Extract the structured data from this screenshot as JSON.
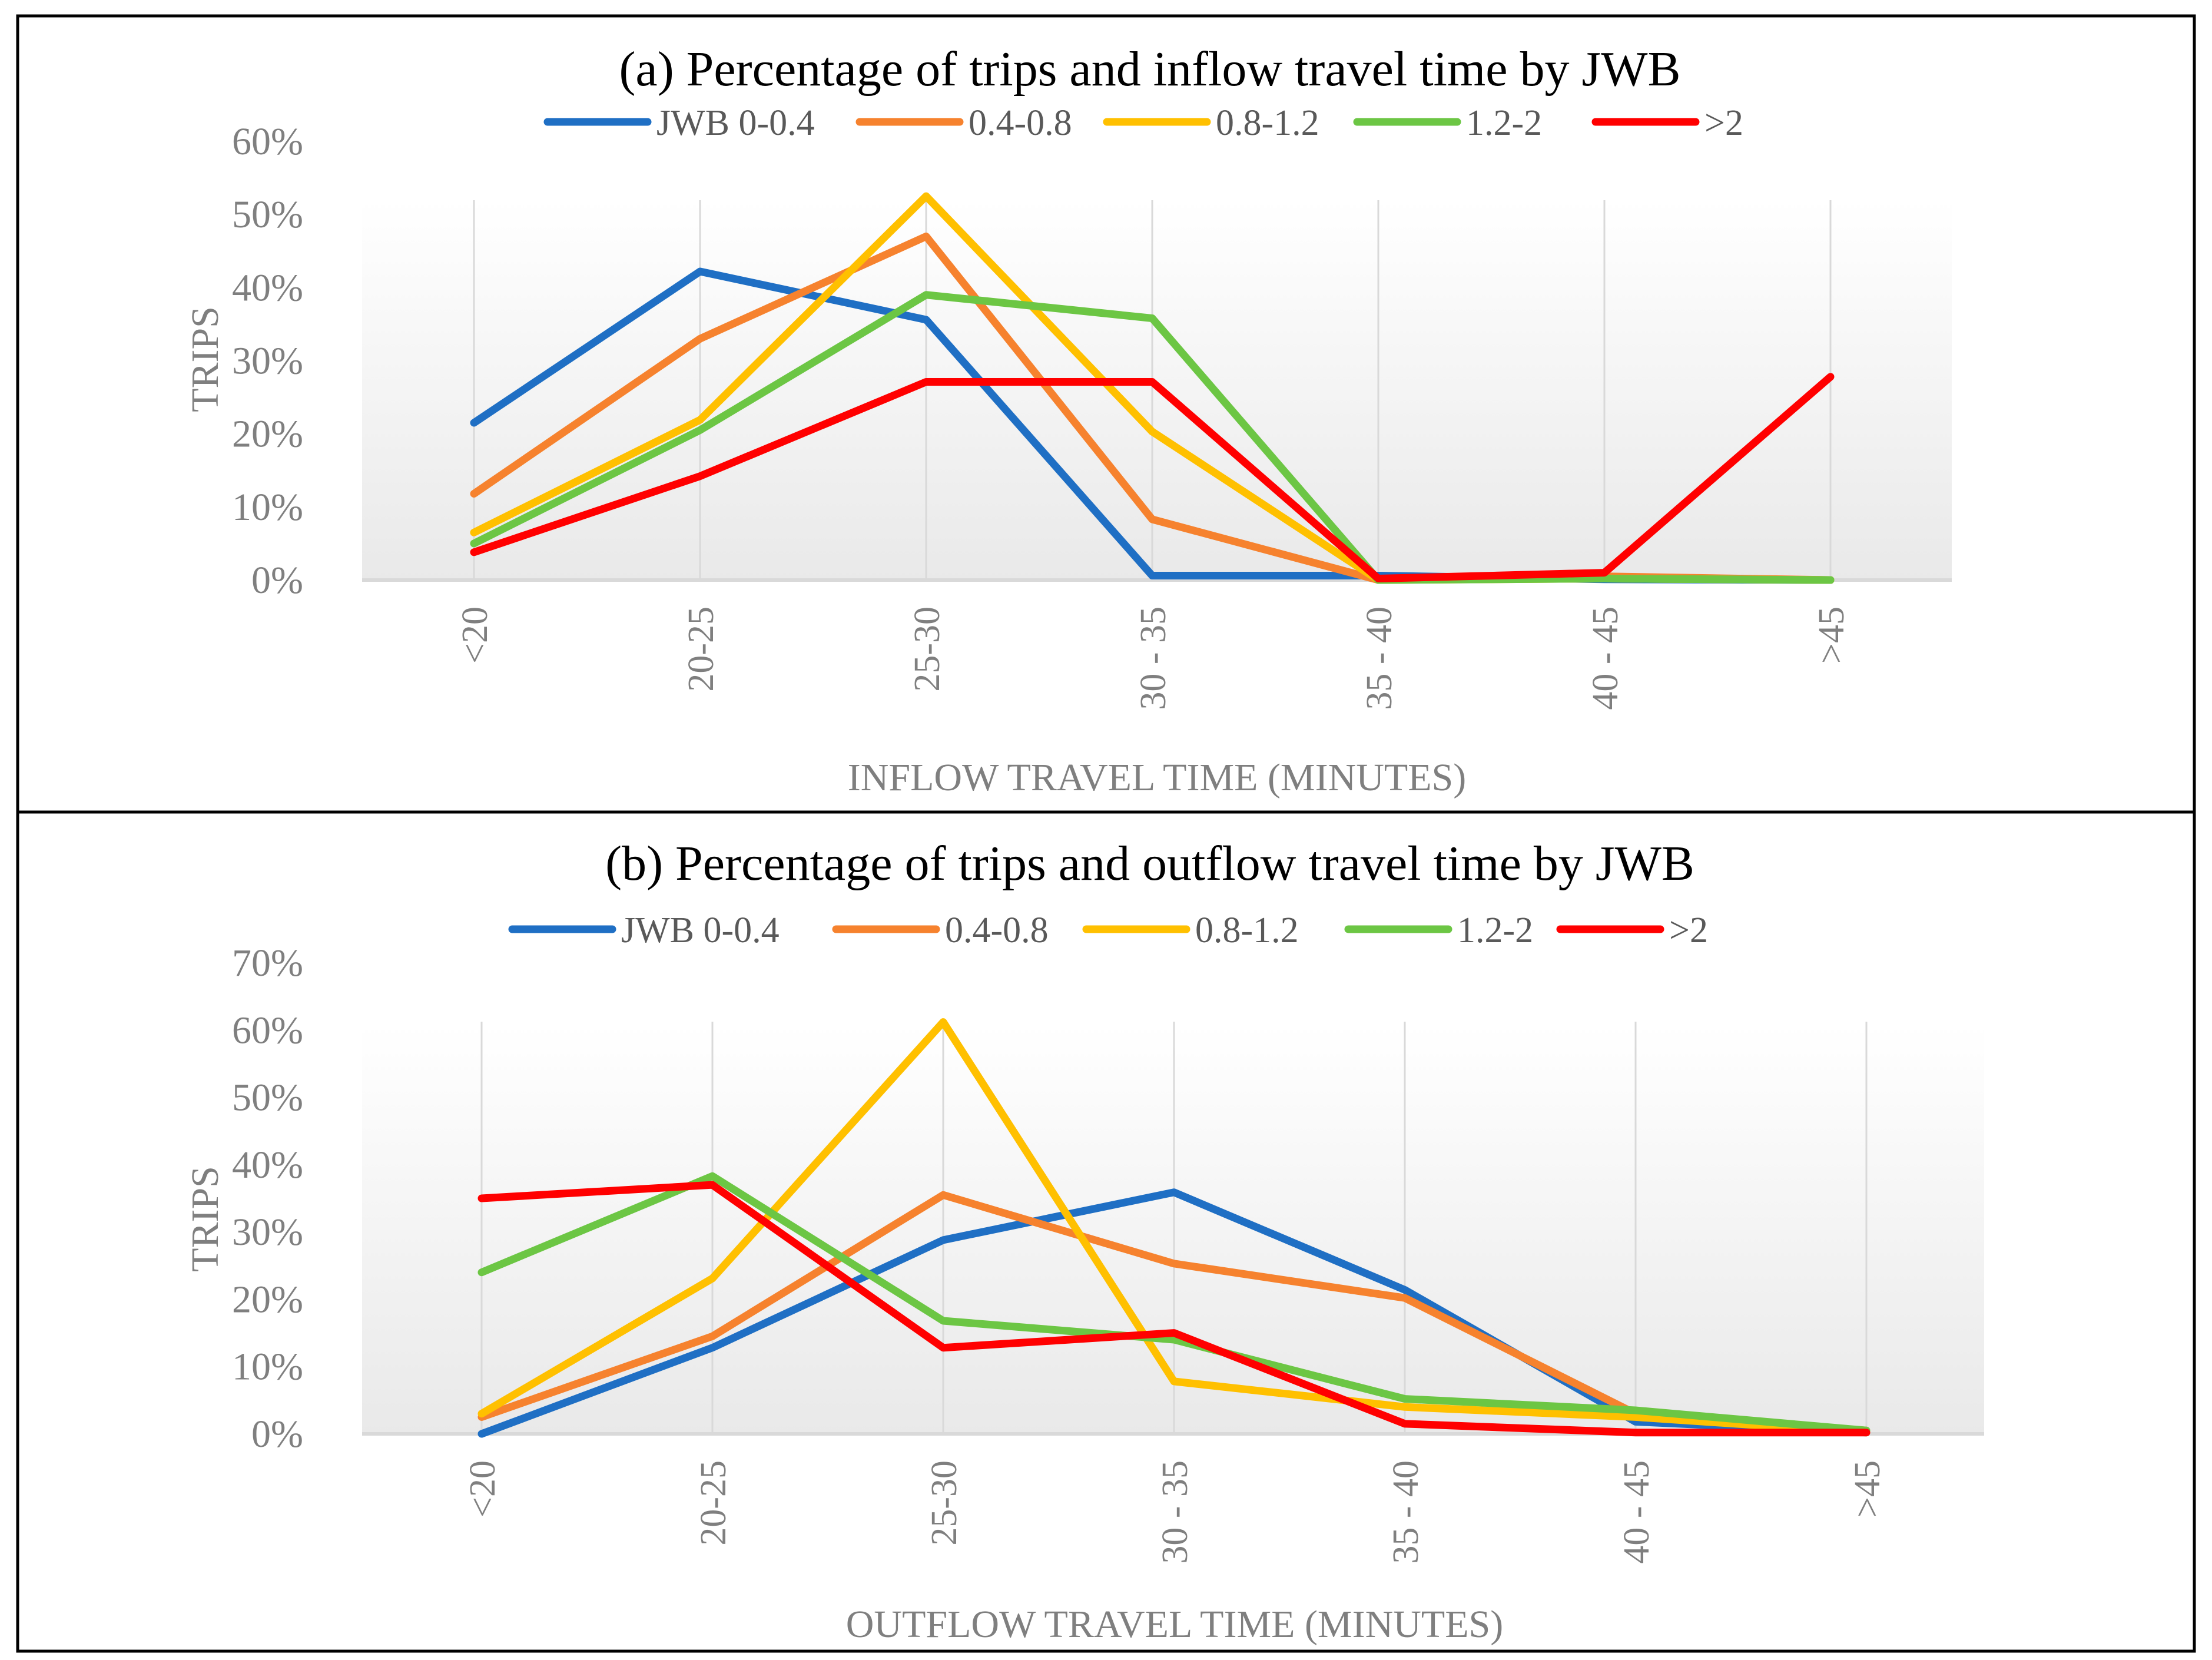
{
  "colors": {
    "series_0": "#1F6FC4",
    "series_1": "#F6822E",
    "series_2": "#FFC000",
    "series_3": "#6CC644",
    "series_4": "#FF0000",
    "frame": "#000000",
    "gridline": "#d9d9d9",
    "tick_text": "#7f7f7f"
  },
  "chart_data": [
    {
      "type": "line",
      "title": "(a) Percentage of trips and inflow travel time by JWB",
      "xlabel": "INFLOW TRAVEL TIME (MINUTES)",
      "ylabel": "TRIPS",
      "ylim": [
        0,
        0.6
      ],
      "yticks": [
        0,
        0.1,
        0.2,
        0.3,
        0.4,
        0.5,
        0.6
      ],
      "ytick_labels": [
        "0%",
        "10%",
        "20%",
        "30%",
        "40%",
        "50%",
        "60%"
      ],
      "categories": [
        "<20",
        "20-25",
        "25-30",
        "30 - 35",
        "35 - 40",
        "40 - 45",
        ">45"
      ],
      "legend_position": "top-center",
      "series": [
        {
          "name": "JWB 0-0.4",
          "values": [
            0.215,
            0.422,
            0.356,
            0.006,
            0.006,
            0.001,
            0.0
          ]
        },
        {
          "name": "0.4-0.8",
          "values": [
            0.118,
            0.33,
            0.47,
            0.083,
            0.0,
            0.005,
            0.0
          ]
        },
        {
          "name": "0.8-1.2",
          "values": [
            0.065,
            0.219,
            0.525,
            0.203,
            0.0,
            0.002,
            0.0
          ]
        },
        {
          "name": "1.2-2",
          "values": [
            0.05,
            0.205,
            0.39,
            0.358,
            0.0,
            0.002,
            0.0
          ]
        },
        {
          "name": ">2",
          "values": [
            0.038,
            0.142,
            0.271,
            0.271,
            0.002,
            0.01,
            0.278
          ]
        }
      ]
    },
    {
      "type": "line",
      "title": "(b) Percentage of trips and outflow travel time by JWB",
      "xlabel": "OUTFLOW TRAVEL TIME (MINUTES)",
      "ylabel": "TRIPS",
      "ylim": [
        0,
        0.7
      ],
      "yticks": [
        0,
        0.1,
        0.2,
        0.3,
        0.4,
        0.5,
        0.6,
        0.7
      ],
      "ytick_labels": [
        "0%",
        "10%",
        "20%",
        "30%",
        "40%",
        "50%",
        "60%",
        "70%"
      ],
      "categories": [
        "<20",
        "20-25",
        "25-30",
        "30 - 35",
        "35 - 40",
        "40 - 45",
        ">45"
      ],
      "legend_position": "top-center",
      "series": [
        {
          "name": "JWB 0-0.4",
          "values": [
            0.0,
            0.128,
            0.288,
            0.359,
            0.214,
            0.018,
            0.002
          ]
        },
        {
          "name": "0.4-0.8",
          "values": [
            0.025,
            0.145,
            0.355,
            0.253,
            0.202,
            0.03,
            0.005
          ]
        },
        {
          "name": "0.8-1.2",
          "values": [
            0.03,
            0.231,
            0.612,
            0.078,
            0.04,
            0.025,
            0.002
          ]
        },
        {
          "name": "1.2-2",
          "values": [
            0.24,
            0.383,
            0.168,
            0.14,
            0.052,
            0.035,
            0.005
          ]
        },
        {
          "name": ">2",
          "values": [
            0.35,
            0.37,
            0.128,
            0.15,
            0.015,
            0.002,
            0.002
          ]
        }
      ]
    }
  ]
}
